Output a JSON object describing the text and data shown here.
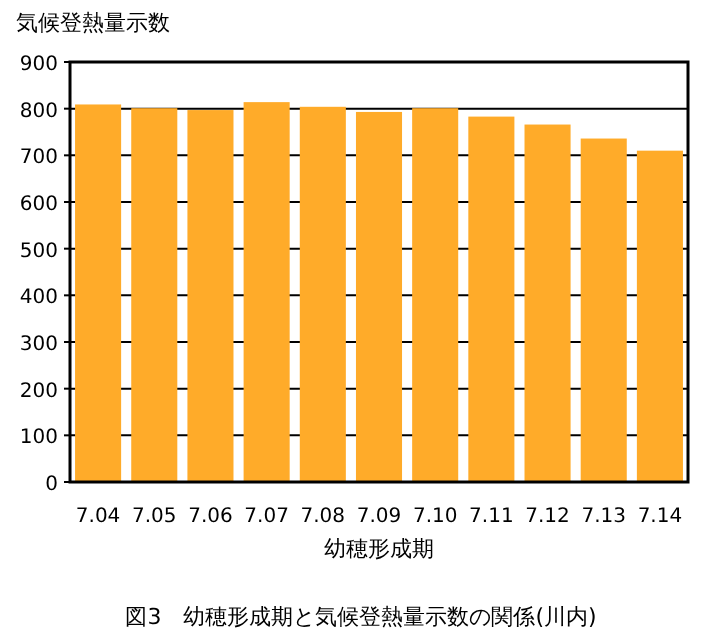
{
  "chart_data": {
    "type": "bar",
    "title": "図3　幼穂形成期と気候登熱量示数の関係(川内)",
    "xlabel": "幼穂形成期",
    "ylabel": "気候登熱量示数",
    "categories": [
      "7.04",
      "7.05",
      "7.06",
      "7.07",
      "7.08",
      "7.09",
      "7.10",
      "7.11",
      "7.12",
      "7.13",
      "7.14"
    ],
    "values": [
      809,
      801,
      797,
      814,
      804,
      793,
      801,
      783,
      766,
      736,
      710
    ],
    "color": "#ffab29",
    "ylim": [
      0,
      900
    ],
    "yticks": [
      0,
      100,
      200,
      300,
      400,
      500,
      600,
      700,
      800,
      900
    ],
    "grid": "y"
  }
}
